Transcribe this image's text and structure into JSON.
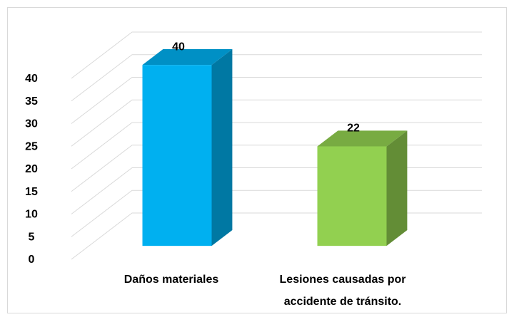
{
  "chart_data": {
    "type": "bar3d",
    "categories": [
      "Daños materiales",
      "Lesiones causadas por accidente de tránsito."
    ],
    "values": [
      40,
      22
    ],
    "series_colors": [
      "#00b0f0",
      "#92d050"
    ],
    "ylim": [
      0,
      40
    ],
    "yticks": [
      0,
      5,
      10,
      15,
      20,
      25,
      30,
      35,
      40
    ],
    "grid": true
  }
}
